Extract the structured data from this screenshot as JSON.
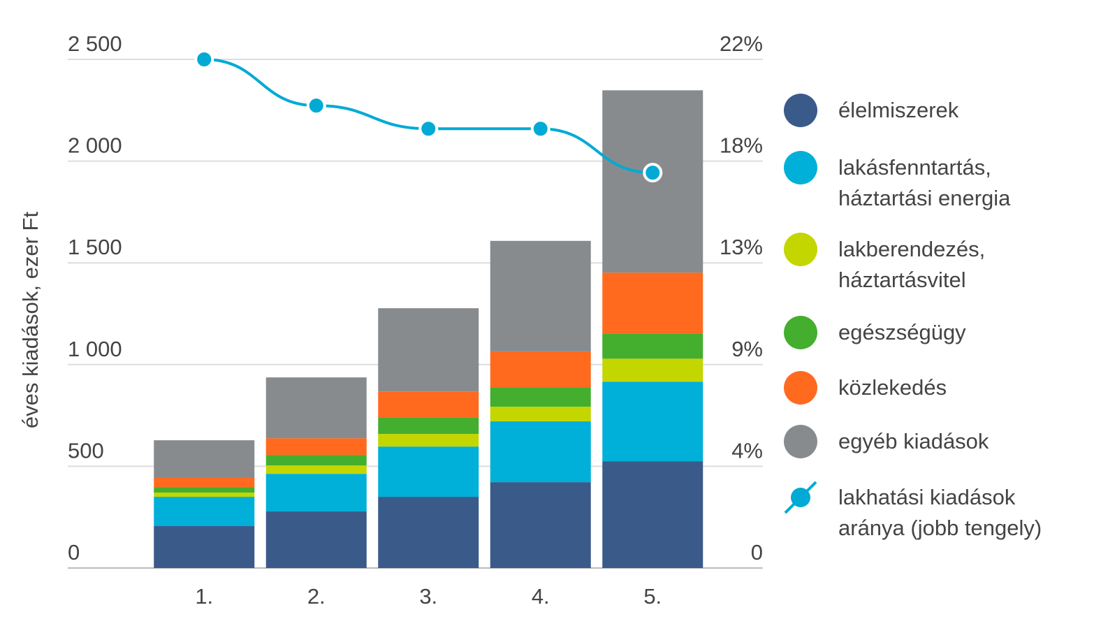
{
  "chart_data": {
    "type": "bar",
    "y_label": "éves kiadások, ezer Ft",
    "categories": [
      "1.",
      "2.",
      "3.",
      "4.",
      "5."
    ],
    "stacked": true,
    "grid": true,
    "ylim": [
      0,
      2500
    ],
    "yticks": [
      0,
      500,
      {
        "value": 1000,
        "label": "1 000"
      },
      {
        "value": 1500,
        "label": "1 500"
      },
      {
        "value": 2000,
        "label": "2 000"
      },
      {
        "value": 2500,
        "label": "2 500"
      }
    ],
    "y2lim": [
      0,
      22
    ],
    "y2ticks": [
      0,
      {
        "value": 4.4,
        "label": "4%"
      },
      {
        "value": 8.8,
        "label": "9%"
      },
      {
        "value": 13.2,
        "label": "13%"
      },
      {
        "value": 17.6,
        "label": "18%"
      },
      {
        "value": 22,
        "label": "22%"
      }
    ],
    "legend": "right",
    "series": [
      {
        "name": "élelmiszerek",
        "color": "#3a5a8a",
        "values": [
          206,
          278,
          350,
          422,
          525
        ]
      },
      {
        "name": "lakásfenntartás, háztartási energia",
        "color": "#00b0d8",
        "values": [
          144,
          185,
          247,
          299,
          391
        ]
      },
      {
        "name": "lakberendezés, háztartásvitel",
        "color": "#c4d600",
        "values": [
          21,
          41,
          62,
          72,
          113
        ]
      },
      {
        "name": "egészségügy",
        "color": "#44ae2e",
        "values": [
          27,
          52,
          82,
          93,
          124
        ]
      },
      {
        "name": "közlekedés",
        "color": "#ff6a1f",
        "values": [
          45,
          82,
          127,
          179,
          299
        ]
      },
      {
        "name": "egyéb kiadások",
        "color": "#888b8e",
        "values": [
          185,
          299,
          409,
          543,
          896
        ]
      },
      {
        "name": "lakhatási kiadások aránya (jobb tengely)",
        "color": "#00aad4",
        "type": "line",
        "axis": "y2",
        "values": [
          22,
          20,
          19,
          19,
          17.1
        ]
      }
    ]
  }
}
